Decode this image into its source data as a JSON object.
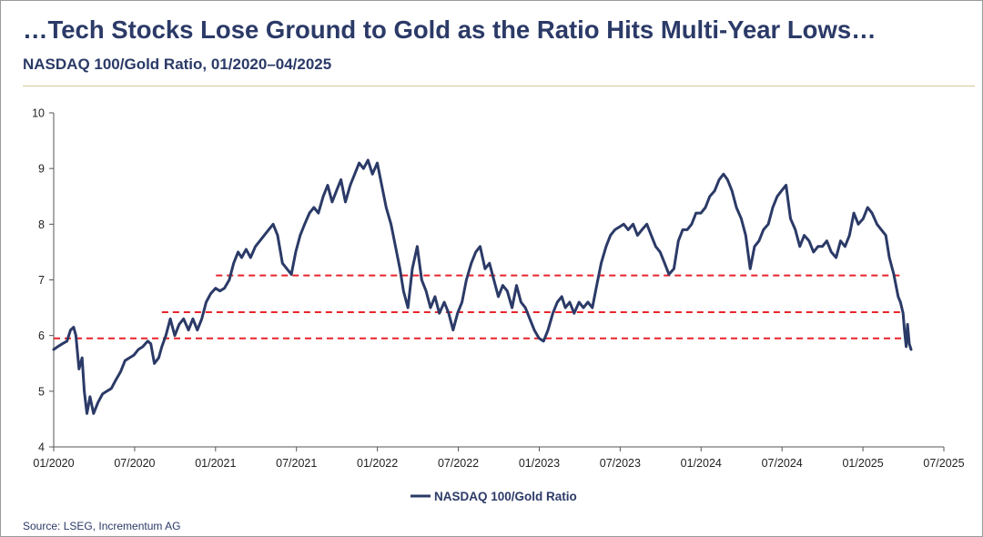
{
  "title": "…Tech Stocks Lose Ground to Gold as the Ratio Hits Multi-Year Lows…",
  "subtitle": "NASDAQ 100/Gold Ratio, 01/2020–04/2025",
  "source": "Source: LSEG, Incrementum AG",
  "colors": {
    "series": "#2b3a67",
    "reference": "#e8242b",
    "title": "#2b3a67",
    "rule": "#d9c79a"
  },
  "chart_data": {
    "type": "line",
    "title": "",
    "xlabel": "",
    "ylabel": "",
    "ylim": [
      4,
      10
    ],
    "yticks": [
      "4",
      "5",
      "6",
      "7",
      "8",
      "9",
      "10"
    ],
    "xticks": [
      "01/2020",
      "07/2020",
      "01/2021",
      "07/2021",
      "01/2022",
      "07/2022",
      "01/2023",
      "07/2023",
      "01/2024",
      "07/2024",
      "01/2025",
      "07/2025"
    ],
    "xrange": [
      "2020-01-01",
      "2025-07-01"
    ],
    "legend": "bottom-center",
    "grid": false,
    "reference_lines": [
      {
        "style": "dashed",
        "y": 7.08,
        "from": "2021-01-01",
        "to": "2025-04-01"
      },
      {
        "style": "dashed",
        "y": 6.42,
        "from": "2020-09-01",
        "to": "2025-04-01"
      },
      {
        "style": "dashed",
        "y": 5.95,
        "from": "2020-01-01",
        "to": "2025-04-01"
      }
    ],
    "series": [
      {
        "name": "NASDAQ 100/Gold Ratio",
        "points": [
          [
            "2020-01-01",
            5.75
          ],
          [
            "2020-01-10",
            5.8
          ],
          [
            "2020-01-20",
            5.85
          ],
          [
            "2020-01-31",
            5.9
          ],
          [
            "2020-02-08",
            6.1
          ],
          [
            "2020-02-15",
            6.15
          ],
          [
            "2020-02-20",
            6.0
          ],
          [
            "2020-02-27",
            5.4
          ],
          [
            "2020-03-05",
            5.6
          ],
          [
            "2020-03-10",
            5.0
          ],
          [
            "2020-03-16",
            4.6
          ],
          [
            "2020-03-23",
            4.9
          ],
          [
            "2020-03-31",
            4.6
          ],
          [
            "2020-04-10",
            4.8
          ],
          [
            "2020-04-20",
            4.95
          ],
          [
            "2020-04-30",
            5.0
          ],
          [
            "2020-05-10",
            5.05
          ],
          [
            "2020-05-20",
            5.2
          ],
          [
            "2020-05-31",
            5.35
          ],
          [
            "2020-06-10",
            5.55
          ],
          [
            "2020-06-20",
            5.6
          ],
          [
            "2020-06-30",
            5.65
          ],
          [
            "2020-07-10",
            5.75
          ],
          [
            "2020-07-20",
            5.8
          ],
          [
            "2020-07-31",
            5.9
          ],
          [
            "2020-08-07",
            5.85
          ],
          [
            "2020-08-15",
            5.5
          ],
          [
            "2020-08-25",
            5.6
          ],
          [
            "2020-09-01",
            5.8
          ],
          [
            "2020-09-10",
            6.0
          ],
          [
            "2020-09-20",
            6.3
          ],
          [
            "2020-09-30",
            6.0
          ],
          [
            "2020-10-10",
            6.2
          ],
          [
            "2020-10-20",
            6.3
          ],
          [
            "2020-10-31",
            6.1
          ],
          [
            "2020-11-10",
            6.3
          ],
          [
            "2020-11-20",
            6.1
          ],
          [
            "2020-11-30",
            6.3
          ],
          [
            "2020-12-10",
            6.6
          ],
          [
            "2020-12-20",
            6.75
          ],
          [
            "2020-12-31",
            6.85
          ],
          [
            "2021-01-10",
            6.8
          ],
          [
            "2021-01-20",
            6.85
          ],
          [
            "2021-01-31",
            7.0
          ],
          [
            "2021-02-10",
            7.3
          ],
          [
            "2021-02-20",
            7.5
          ],
          [
            "2021-02-28",
            7.4
          ],
          [
            "2021-03-10",
            7.55
          ],
          [
            "2021-03-20",
            7.4
          ],
          [
            "2021-03-31",
            7.6
          ],
          [
            "2021-04-10",
            7.7
          ],
          [
            "2021-04-20",
            7.8
          ],
          [
            "2021-04-30",
            7.9
          ],
          [
            "2021-05-10",
            8.0
          ],
          [
            "2021-05-20",
            7.8
          ],
          [
            "2021-05-31",
            7.3
          ],
          [
            "2021-06-10",
            7.2
          ],
          [
            "2021-06-20",
            7.1
          ],
          [
            "2021-06-30",
            7.5
          ],
          [
            "2021-07-10",
            7.8
          ],
          [
            "2021-07-20",
            8.0
          ],
          [
            "2021-07-31",
            8.2
          ],
          [
            "2021-08-10",
            8.3
          ],
          [
            "2021-08-20",
            8.2
          ],
          [
            "2021-08-31",
            8.5
          ],
          [
            "2021-09-10",
            8.7
          ],
          [
            "2021-09-20",
            8.4
          ],
          [
            "2021-09-30",
            8.6
          ],
          [
            "2021-10-10",
            8.8
          ],
          [
            "2021-10-20",
            8.4
          ],
          [
            "2021-10-31",
            8.7
          ],
          [
            "2021-11-10",
            8.9
          ],
          [
            "2021-11-20",
            9.1
          ],
          [
            "2021-11-30",
            9.0
          ],
          [
            "2021-12-10",
            9.15
          ],
          [
            "2021-12-20",
            8.9
          ],
          [
            "2021-12-31",
            9.1
          ],
          [
            "2022-01-10",
            8.7
          ],
          [
            "2022-01-20",
            8.3
          ],
          [
            "2022-01-31",
            8.0
          ],
          [
            "2022-02-10",
            7.6
          ],
          [
            "2022-02-20",
            7.2
          ],
          [
            "2022-02-28",
            6.8
          ],
          [
            "2022-03-10",
            6.5
          ],
          [
            "2022-03-20",
            7.2
          ],
          [
            "2022-03-31",
            7.6
          ],
          [
            "2022-04-10",
            7.0
          ],
          [
            "2022-04-20",
            6.8
          ],
          [
            "2022-04-30",
            6.5
          ],
          [
            "2022-05-10",
            6.7
          ],
          [
            "2022-05-20",
            6.4
          ],
          [
            "2022-05-31",
            6.6
          ],
          [
            "2022-06-10",
            6.4
          ],
          [
            "2022-06-20",
            6.1
          ],
          [
            "2022-06-30",
            6.4
          ],
          [
            "2022-07-10",
            6.6
          ],
          [
            "2022-07-20",
            7.0
          ],
          [
            "2022-07-31",
            7.3
          ],
          [
            "2022-08-10",
            7.5
          ],
          [
            "2022-08-20",
            7.6
          ],
          [
            "2022-08-31",
            7.2
          ],
          [
            "2022-09-10",
            7.3
          ],
          [
            "2022-09-20",
            7.0
          ],
          [
            "2022-09-30",
            6.7
          ],
          [
            "2022-10-10",
            6.9
          ],
          [
            "2022-10-20",
            6.8
          ],
          [
            "2022-10-31",
            6.5
          ],
          [
            "2022-11-10",
            6.9
          ],
          [
            "2022-11-20",
            6.6
          ],
          [
            "2022-11-30",
            6.5
          ],
          [
            "2022-12-10",
            6.3
          ],
          [
            "2022-12-20",
            6.1
          ],
          [
            "2022-12-31",
            5.95
          ],
          [
            "2023-01-10",
            5.9
          ],
          [
            "2023-01-20",
            6.1
          ],
          [
            "2023-01-31",
            6.4
          ],
          [
            "2023-02-10",
            6.6
          ],
          [
            "2023-02-20",
            6.7
          ],
          [
            "2023-02-28",
            6.5
          ],
          [
            "2023-03-10",
            6.6
          ],
          [
            "2023-03-20",
            6.4
          ],
          [
            "2023-03-31",
            6.6
          ],
          [
            "2023-04-10",
            6.5
          ],
          [
            "2023-04-20",
            6.6
          ],
          [
            "2023-04-30",
            6.5
          ],
          [
            "2023-05-10",
            6.9
          ],
          [
            "2023-05-20",
            7.3
          ],
          [
            "2023-05-31",
            7.6
          ],
          [
            "2023-06-10",
            7.8
          ],
          [
            "2023-06-20",
            7.9
          ],
          [
            "2023-06-30",
            7.95
          ],
          [
            "2023-07-10",
            8.0
          ],
          [
            "2023-07-20",
            7.9
          ],
          [
            "2023-07-31",
            8.0
          ],
          [
            "2023-08-10",
            7.8
          ],
          [
            "2023-08-20",
            7.9
          ],
          [
            "2023-08-31",
            8.0
          ],
          [
            "2023-09-10",
            7.8
          ],
          [
            "2023-09-20",
            7.6
          ],
          [
            "2023-09-30",
            7.5
          ],
          [
            "2023-10-10",
            7.3
          ],
          [
            "2023-10-20",
            7.1
          ],
          [
            "2023-10-31",
            7.2
          ],
          [
            "2023-11-10",
            7.7
          ],
          [
            "2023-11-20",
            7.9
          ],
          [
            "2023-11-30",
            7.9
          ],
          [
            "2023-12-10",
            8.0
          ],
          [
            "2023-12-20",
            8.2
          ],
          [
            "2023-12-31",
            8.2
          ],
          [
            "2024-01-10",
            8.3
          ],
          [
            "2024-01-20",
            8.5
          ],
          [
            "2024-01-31",
            8.6
          ],
          [
            "2024-02-10",
            8.8
          ],
          [
            "2024-02-20",
            8.9
          ],
          [
            "2024-02-29",
            8.8
          ],
          [
            "2024-03-10",
            8.6
          ],
          [
            "2024-03-20",
            8.3
          ],
          [
            "2024-03-31",
            8.1
          ],
          [
            "2024-04-10",
            7.8
          ],
          [
            "2024-04-20",
            7.2
          ],
          [
            "2024-04-30",
            7.6
          ],
          [
            "2024-05-10",
            7.7
          ],
          [
            "2024-05-20",
            7.9
          ],
          [
            "2024-05-31",
            8.0
          ],
          [
            "2024-06-10",
            8.3
          ],
          [
            "2024-06-20",
            8.5
          ],
          [
            "2024-06-30",
            8.6
          ],
          [
            "2024-07-10",
            8.7
          ],
          [
            "2024-07-20",
            8.1
          ],
          [
            "2024-07-31",
            7.9
          ],
          [
            "2024-08-10",
            7.6
          ],
          [
            "2024-08-20",
            7.8
          ],
          [
            "2024-08-31",
            7.7
          ],
          [
            "2024-09-10",
            7.5
          ],
          [
            "2024-09-20",
            7.6
          ],
          [
            "2024-09-30",
            7.6
          ],
          [
            "2024-10-10",
            7.7
          ],
          [
            "2024-10-20",
            7.5
          ],
          [
            "2024-10-31",
            7.4
          ],
          [
            "2024-11-10",
            7.7
          ],
          [
            "2024-11-20",
            7.6
          ],
          [
            "2024-11-30",
            7.8
          ],
          [
            "2024-12-10",
            8.2
          ],
          [
            "2024-12-20",
            8.0
          ],
          [
            "2024-12-31",
            8.1
          ],
          [
            "2025-01-10",
            8.3
          ],
          [
            "2025-01-20",
            8.2
          ],
          [
            "2025-01-31",
            8.0
          ],
          [
            "2025-02-10",
            7.9
          ],
          [
            "2025-02-20",
            7.8
          ],
          [
            "2025-02-28",
            7.4
          ],
          [
            "2025-03-10",
            7.1
          ],
          [
            "2025-03-20",
            6.7
          ],
          [
            "2025-03-25",
            6.6
          ],
          [
            "2025-03-31",
            6.4
          ],
          [
            "2025-04-03",
            6.1
          ],
          [
            "2025-04-07",
            5.8
          ],
          [
            "2025-04-10",
            6.2
          ],
          [
            "2025-04-14",
            5.85
          ],
          [
            "2025-04-18",
            5.75
          ]
        ]
      }
    ]
  }
}
